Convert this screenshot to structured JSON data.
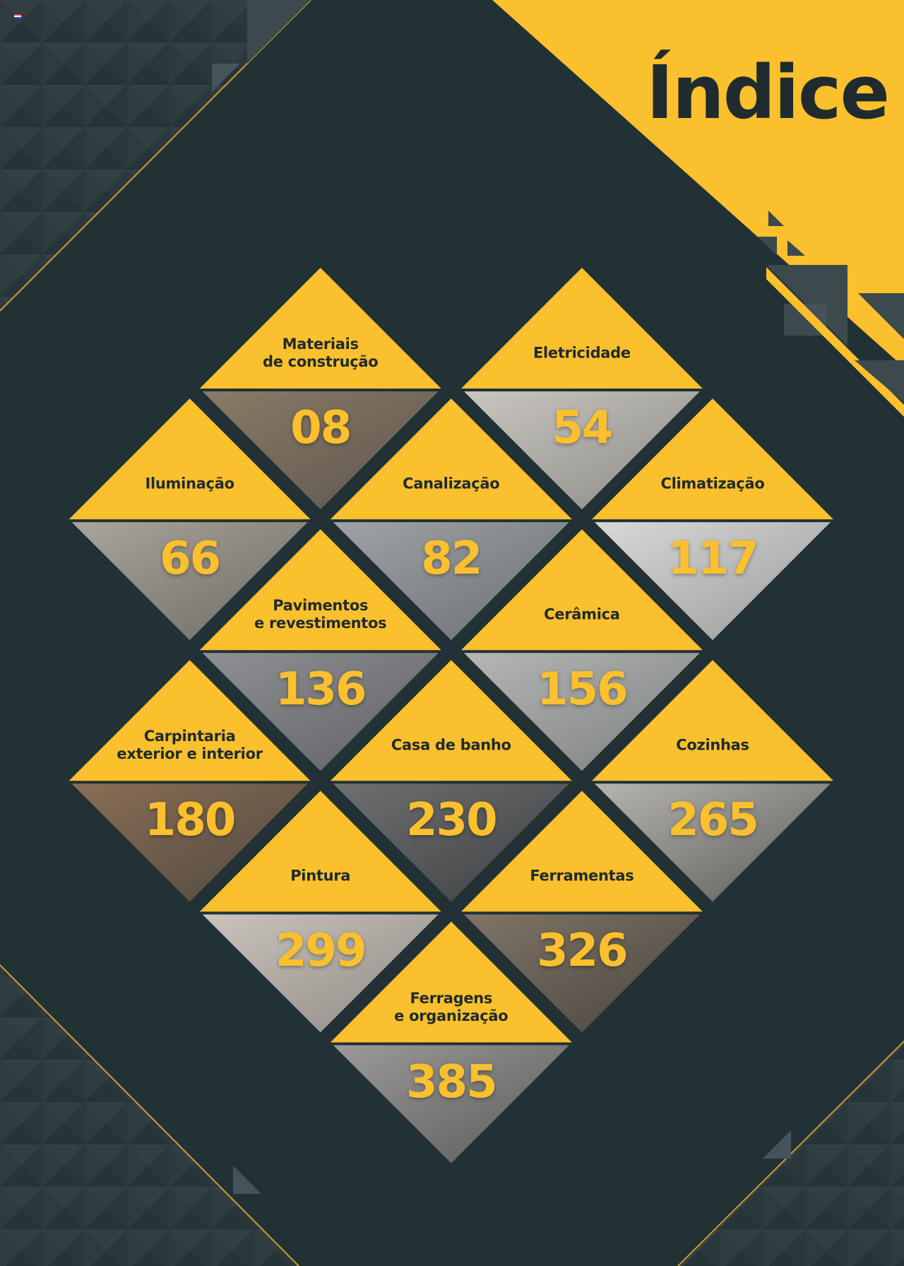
{
  "title": "Índice",
  "colors": {
    "background": "#213135",
    "accent": "#fbc02d",
    "text_dark": "#1f2b2e"
  },
  "tiles": [
    {
      "label": [
        "Materiais",
        "de construção"
      ],
      "page": "08"
    },
    {
      "label": [
        "Eletricidade"
      ],
      "page": "54"
    },
    {
      "label": [
        "Iluminação"
      ],
      "page": "66"
    },
    {
      "label": [
        "Canalização"
      ],
      "page": "82"
    },
    {
      "label": [
        "Climatização"
      ],
      "page": "117"
    },
    {
      "label": [
        "Pavimentos",
        "e revestimentos"
      ],
      "page": "136"
    },
    {
      "label": [
        "Cerâmica"
      ],
      "page": "156"
    },
    {
      "label": [
        "Carpintaria",
        "exterior e interior"
      ],
      "page": "180"
    },
    {
      "label": [
        "Casa de banho"
      ],
      "page": "230"
    },
    {
      "label": [
        "Cozinhas"
      ],
      "page": "265"
    },
    {
      "label": [
        "Pintura"
      ],
      "page": "299"
    },
    {
      "label": [
        "Ferramentas"
      ],
      "page": "326"
    },
    {
      "label": [
        "Ferragens",
        "e organização"
      ],
      "page": "385"
    }
  ]
}
